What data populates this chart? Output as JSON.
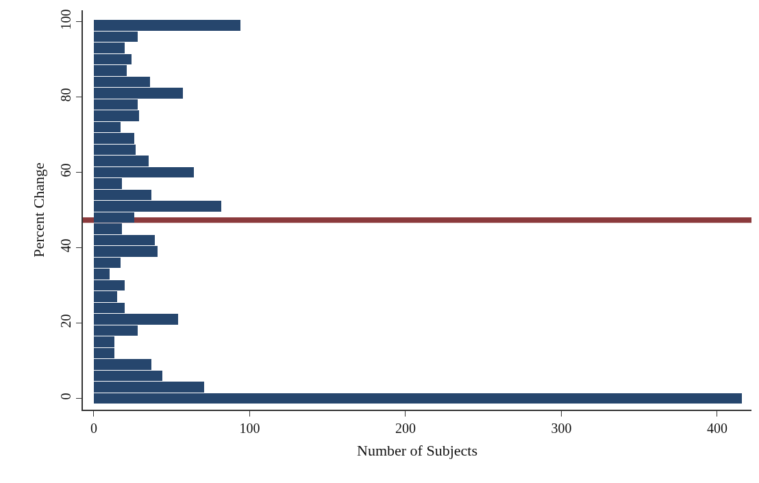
{
  "chart_data": {
    "type": "bar",
    "orientation": "horizontal",
    "xlabel": "Number of Subjects",
    "ylabel": "Percent Change",
    "x": [
      99,
      96,
      93,
      90,
      87,
      84,
      81,
      78,
      75,
      72,
      69,
      66,
      63,
      60,
      57,
      54,
      51,
      48,
      45,
      42,
      39,
      36,
      33,
      30,
      27,
      24,
      21,
      18,
      15,
      12,
      9,
      6,
      3,
      0
    ],
    "series": [
      {
        "color": "#26466d",
        "values": [
          94,
          28,
          20,
          24,
          21,
          36,
          57,
          28,
          29,
          17,
          26,
          27,
          35,
          64,
          18,
          37,
          82,
          26,
          18,
          39,
          41,
          17,
          10,
          20,
          15,
          20,
          54,
          28,
          13,
          13,
          37,
          44,
          71,
          416
        ]
      }
    ],
    "ref_lines": [
      {
        "axis": "y",
        "value": 47.3,
        "color": "#8b3a3c"
      }
    ],
    "xlim": [
      -7,
      422
    ],
    "xticks": [
      0,
      100,
      200,
      300,
      400
    ],
    "ylim": [
      -3,
      103
    ],
    "yticks": [
      0,
      20,
      40,
      60,
      80,
      100
    ]
  }
}
